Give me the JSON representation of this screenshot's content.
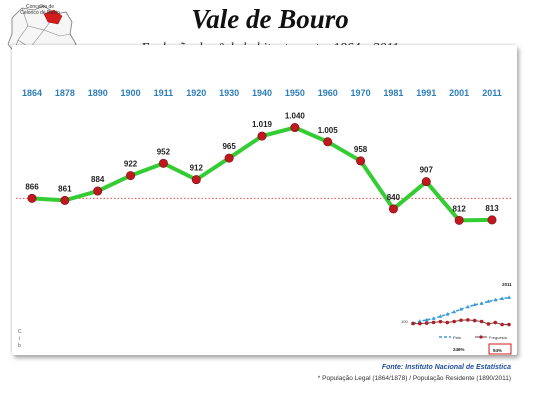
{
  "map_logo": {
    "line1": "Concelho de",
    "line2": "Celorico de Basto"
  },
  "title": "Vale de Bouro",
  "subtitle": "Evolução do nº de habitantes entre 1864 e 2011",
  "chart_data": {
    "type": "line",
    "categories": [
      "1864",
      "1878",
      "1890",
      "1900",
      "1911",
      "1920",
      "1930",
      "1940",
      "1950",
      "1960",
      "1970",
      "1981",
      "1991",
      "2001",
      "2011"
    ],
    "series": [
      {
        "values": [
          866,
          861,
          884,
          922,
          952,
          912,
          965,
          1019,
          1040,
          1005,
          958,
          840,
          907,
          812,
          813
        ],
        "labels": [
          "866",
          "861",
          "884",
          "922",
          "952",
          "912",
          "965",
          "1.019",
          "1.040",
          "1.005",
          "958",
          "840",
          "907",
          "812",
          "813"
        ],
        "color": "#33cc33",
        "marker_color": "#c0181f"
      }
    ],
    "reference_line": {
      "value": 866,
      "color": "#e03030",
      "style": "dotted"
    },
    "ylim": [
      540,
      1120
    ],
    "grid": false,
    "legend": "none"
  },
  "inset": {
    "year_label": "2011",
    "start_label": "100",
    "legend_pais": "País",
    "legend_freguesia": "Freguesia",
    "pct_pais": "246%",
    "pct_freguesia": "94%",
    "pais_values": [
      100,
      112,
      120,
      128,
      140,
      152,
      165,
      180,
      193,
      205,
      212,
      224,
      232,
      240,
      246
    ],
    "freguesia_values": [
      100,
      99,
      102,
      106,
      110,
      105,
      111,
      118,
      120,
      116,
      111,
      97,
      105,
      94,
      94
    ],
    "ylim": [
      80,
      260
    ],
    "colors": {
      "pais": "#3a9ad9",
      "freguesia": "#c0181f"
    }
  },
  "axis_glyphs": [
    "C",
    "i",
    "b"
  ],
  "source": "Fonte: Instituto Nacional de Estatística",
  "footnote": "* População Legal (1864/1878) /  População Residente (1890/2011)"
}
